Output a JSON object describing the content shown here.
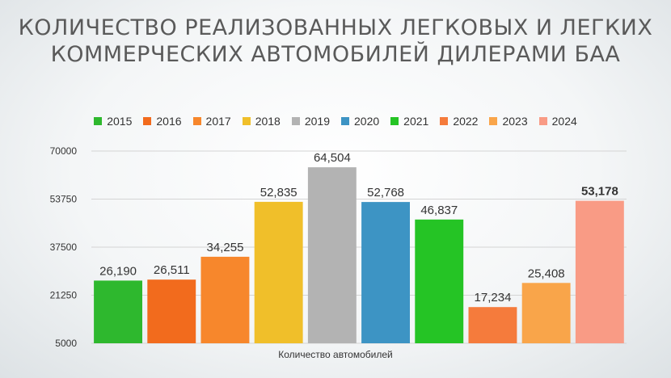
{
  "chart_data": {
    "type": "bar",
    "title_lines": [
      "КОЛИЧЕСТВО РЕАЛИЗОВАННЫХ ЛЕГКОВЫХ И ЛЕГКИХ",
      "КОММЕРЧЕСКИХ АВТОМОБИЛЕЙ ДИЛЕРАМИ БАА"
    ],
    "xlabel": "Количество автомобилей",
    "ylabel": "",
    "ylim": [
      5000,
      70000
    ],
    "yticks": [
      "70000",
      "53750",
      "37500",
      "21250",
      "5000"
    ],
    "ytick_values": [
      70000,
      53750,
      37500,
      21250,
      5000
    ],
    "grid": true,
    "legend_position": "top",
    "series": [
      {
        "name": "2015",
        "value": 26190,
        "label": "26,190",
        "color": "#2eb82e"
      },
      {
        "name": "2016",
        "value": 26511,
        "label": "26,511",
        "color": "#f26b1d"
      },
      {
        "name": "2017",
        "value": 34255,
        "label": "34,255",
        "color": "#f7872c"
      },
      {
        "name": "2018",
        "value": 52835,
        "label": "52,835",
        "color": "#f0bf2a"
      },
      {
        "name": "2019",
        "value": 64504,
        "label": "64,504",
        "color": "#b3b3b3"
      },
      {
        "name": "2020",
        "value": 52768,
        "label": "52,768",
        "color": "#3d94c4"
      },
      {
        "name": "2021",
        "value": 46837,
        "label": "46,837",
        "color": "#25c425"
      },
      {
        "name": "2022",
        "value": 17234,
        "label": "17,234",
        "color": "#f57b3c"
      },
      {
        "name": "2023",
        "value": 25408,
        "label": "25,408",
        "color": "#f9a54a"
      },
      {
        "name": "2024",
        "value": 53178,
        "label": "53,178",
        "color": "#f99b85"
      }
    ],
    "bold_label_series": "2024"
  }
}
